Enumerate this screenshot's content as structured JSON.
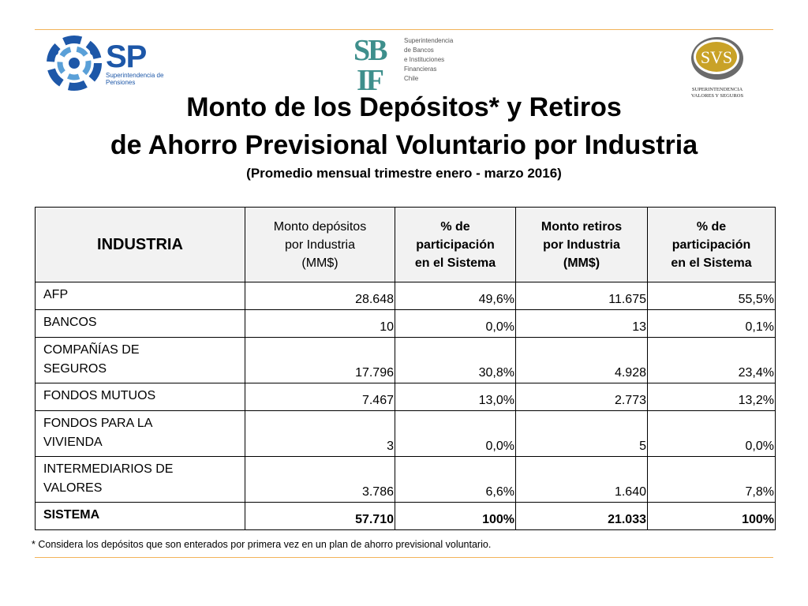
{
  "logos": {
    "sp": {
      "text": "SP",
      "subtitle": "Superintendencia de Pensiones"
    },
    "sbif": {
      "lines": [
        "Superintendencia",
        "de Bancos",
        "e Instituciones",
        "Financieras",
        "Chile"
      ]
    },
    "svs": {
      "text": "SVS",
      "subtitle_line1": "SUPERINTENDENCIA",
      "subtitle_line2": "VALORES Y SEGUROS"
    }
  },
  "title_line1": "Monto de los Depósitos* y Retiros",
  "title_line2": "de Ahorro Previsional Voluntario por Industria",
  "subtitle": "(Promedio mensual trimestre enero - marzo 2016)",
  "table": {
    "headers": {
      "industria": "INDUSTRIA",
      "col1": [
        "Monto depósitos",
        "por Industria",
        "(MM$)"
      ],
      "col2": [
        "% de",
        "participación",
        "en el Sistema"
      ],
      "col3": [
        "Monto retiros",
        "por Industria",
        "(MM$)"
      ],
      "col4": [
        "% de",
        "participación",
        "en el Sistema"
      ]
    },
    "rows": [
      {
        "name": [
          "AFP"
        ],
        "dep": "28.648",
        "dep_pct": "49,6%",
        "ret": "11.675",
        "ret_pct": "55,5%"
      },
      {
        "name": [
          "BANCOS"
        ],
        "dep": "10",
        "dep_pct": "0,0%",
        "ret": "13",
        "ret_pct": "0,1%"
      },
      {
        "name": [
          "COMPAÑÍAS DE",
          "SEGUROS"
        ],
        "dep": "17.796",
        "dep_pct": "30,8%",
        "ret": "4.928",
        "ret_pct": "23,4%"
      },
      {
        "name": [
          "FONDOS MUTUOS"
        ],
        "dep": "7.467",
        "dep_pct": "13,0%",
        "ret": "2.773",
        "ret_pct": "13,2%"
      },
      {
        "name": [
          "FONDOS PARA LA",
          "VIVIENDA"
        ],
        "dep": "3",
        "dep_pct": "0,0%",
        "ret": "5",
        "ret_pct": "0,0%"
      },
      {
        "name": [
          "INTERMEDIARIOS DE",
          "VALORES"
        ],
        "dep": "3.786",
        "dep_pct": "6,6%",
        "ret": "1.640",
        "ret_pct": "7,8%"
      }
    ],
    "total": {
      "name": "SISTEMA",
      "dep": "57.710",
      "dep_pct": "100%",
      "ret": "21.033",
      "ret_pct": "100%"
    }
  },
  "footnote": "* Considera los depósitos que son enterados por primera vez en un plan de ahorro previsional voluntario.",
  "colors": {
    "rule": "#f2b35a",
    "sp_blue": "#1d57a8",
    "sbif_teal": "#3e8f8c",
    "svs_gold": "#c9a227",
    "header_bg": "#f2f2f2"
  }
}
